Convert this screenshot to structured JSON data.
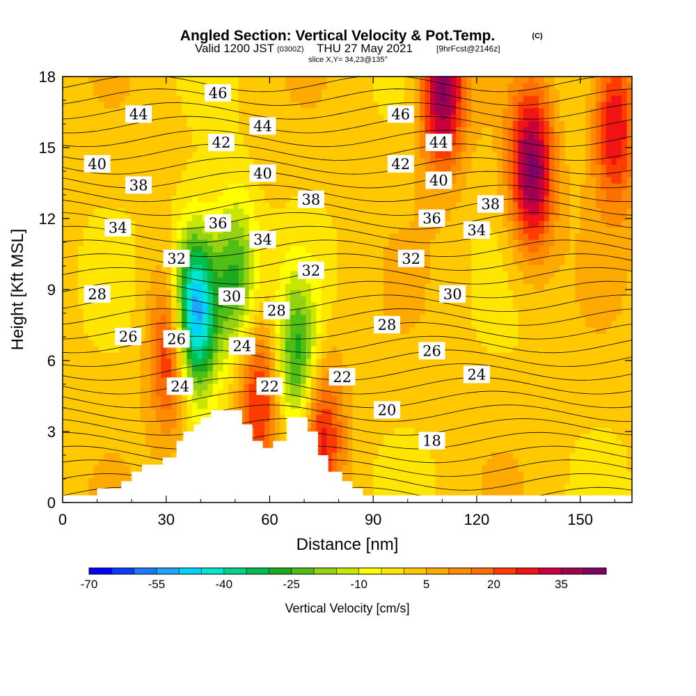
{
  "chart_data": {
    "type": "heatmap",
    "title": "Angled Section: Vertical Velocity & Pot.Temp.",
    "title_suffix": "(C)",
    "subtitle_valid": "Valid 1200 JST",
    "subtitle_utc": "(0300Z)",
    "subtitle_date": "THU 27 May 2021",
    "subtitle_fcst": "[9hrFcst@2146z]",
    "slice": "slice X,Y= 34,23@135°",
    "xlabel": "Distance [nm]",
    "ylabel": "Height [Kft MSL]",
    "xlim": [
      0,
      165
    ],
    "ylim": [
      0,
      18
    ],
    "xticks": [
      0,
      30,
      60,
      90,
      120,
      150
    ],
    "yticks": [
      0,
      3,
      6,
      9,
      12,
      15,
      18
    ],
    "colorbar": {
      "label": "Vertical Velocity [cm/s]",
      "levels": [
        -70,
        -65,
        -60,
        -55,
        -50,
        -45,
        -40,
        -35,
        -30,
        -25,
        -20,
        -15,
        -10,
        -5,
        0,
        5,
        10,
        15,
        20,
        25,
        30,
        35,
        40,
        45
      ],
      "tick_labels": [
        -70,
        -55,
        -40,
        -25,
        -10,
        5,
        20,
        35
      ],
      "colors": [
        "#0000ff",
        "#0a3cff",
        "#1e78ff",
        "#1ea5ff",
        "#00d2ff",
        "#00e6d2",
        "#00d28c",
        "#00be50",
        "#1eaa1e",
        "#50be14",
        "#96d214",
        "#c8e600",
        "#ffff00",
        "#ffe600",
        "#ffc800",
        "#ffaa00",
        "#ff8c00",
        "#ff6e00",
        "#ff3c00",
        "#f01414",
        "#c8003c",
        "#a00050",
        "#820064"
      ]
    },
    "velocity_features": [
      {
        "x": 38,
        "y": 8.0,
        "value": -65
      },
      {
        "x": 50,
        "y": 9.5,
        "value": -30
      },
      {
        "x": 68,
        "y": 6.0,
        "value": -30
      },
      {
        "x": 32,
        "y": 6.5,
        "value": 32
      },
      {
        "x": 57,
        "y": 4.5,
        "value": 25
      },
      {
        "x": 75,
        "y": 3.0,
        "value": 25
      },
      {
        "x": 136,
        "y": 14.0,
        "value": 40
      },
      {
        "x": 110,
        "y": 17.5,
        "value": 40
      },
      {
        "x": 160,
        "y": 16.0,
        "value": 30
      }
    ],
    "theta_contours": {
      "min": 17,
      "max": 47,
      "interval": 1,
      "unit": "C"
    },
    "contour_labels": [
      {
        "text": "46",
        "x": 45,
        "y": 17.3
      },
      {
        "text": "44",
        "x": 22,
        "y": 16.4
      },
      {
        "text": "44",
        "x": 58,
        "y": 15.9
      },
      {
        "text": "46",
        "x": 98,
        "y": 16.4
      },
      {
        "text": "44",
        "x": 109,
        "y": 15.2
      },
      {
        "text": "40",
        "x": 10,
        "y": 14.3
      },
      {
        "text": "42",
        "x": 46,
        "y": 15.2
      },
      {
        "text": "42",
        "x": 98,
        "y": 14.3
      },
      {
        "text": "40",
        "x": 58,
        "y": 13.9
      },
      {
        "text": "40",
        "x": 109,
        "y": 13.6
      },
      {
        "text": "38",
        "x": 22,
        "y": 13.4
      },
      {
        "text": "38",
        "x": 72,
        "y": 12.8
      },
      {
        "text": "38",
        "x": 124,
        "y": 12.6
      },
      {
        "text": "36",
        "x": 45,
        "y": 11.8
      },
      {
        "text": "36",
        "x": 107,
        "y": 12.0
      },
      {
        "text": "34",
        "x": 16,
        "y": 11.6
      },
      {
        "text": "34",
        "x": 58,
        "y": 11.1
      },
      {
        "text": "34",
        "x": 120,
        "y": 11.5
      },
      {
        "text": "32",
        "x": 33,
        "y": 10.3
      },
      {
        "text": "32",
        "x": 72,
        "y": 9.8
      },
      {
        "text": "32",
        "x": 101,
        "y": 10.3
      },
      {
        "text": "30",
        "x": 49,
        "y": 8.7
      },
      {
        "text": "30",
        "x": 113,
        "y": 8.8
      },
      {
        "text": "28",
        "x": 10,
        "y": 8.8
      },
      {
        "text": "28",
        "x": 62,
        "y": 8.1
      },
      {
        "text": "28",
        "x": 94,
        "y": 7.5
      },
      {
        "text": "26",
        "x": 19,
        "y": 7.0
      },
      {
        "text": "26",
        "x": 33,
        "y": 6.9
      },
      {
        "text": "26",
        "x": 107,
        "y": 6.4
      },
      {
        "text": "24",
        "x": 52,
        "y": 6.6
      },
      {
        "text": "24",
        "x": 34,
        "y": 4.9
      },
      {
        "text": "24",
        "x": 120,
        "y": 5.4
      },
      {
        "text": "22",
        "x": 60,
        "y": 4.9
      },
      {
        "text": "22",
        "x": 81,
        "y": 5.3
      },
      {
        "text": "20",
        "x": 94,
        "y": 3.9
      },
      {
        "text": "18",
        "x": 107,
        "y": 2.6
      }
    ],
    "terrain_profile_nm_kft": [
      [
        0,
        0.3
      ],
      [
        10,
        0.3
      ],
      [
        10,
        0.6
      ],
      [
        17,
        0.6
      ],
      [
        17,
        0.9
      ],
      [
        20,
        0.9
      ],
      [
        20,
        1.3
      ],
      [
        23,
        1.3
      ],
      [
        23,
        1.6
      ],
      [
        29,
        1.6
      ],
      [
        29,
        1.9
      ],
      [
        33,
        1.9
      ],
      [
        33,
        2.6
      ],
      [
        35,
        2.6
      ],
      [
        35,
        3.0
      ],
      [
        38,
        3.0
      ],
      [
        38,
        3.3
      ],
      [
        40,
        3.3
      ],
      [
        40,
        3.6
      ],
      [
        43,
        3.6
      ],
      [
        43,
        3.9
      ],
      [
        52,
        3.9
      ],
      [
        52,
        3.3
      ],
      [
        55,
        3.3
      ],
      [
        55,
        2.6
      ],
      [
        58,
        2.6
      ],
      [
        58,
        2.3
      ],
      [
        61,
        2.3
      ],
      [
        61,
        2.6
      ],
      [
        65,
        2.6
      ],
      [
        65,
        3.6
      ],
      [
        71,
        3.6
      ],
      [
        71,
        3.0
      ],
      [
        74,
        3.0
      ],
      [
        74,
        2.0
      ],
      [
        77,
        2.0
      ],
      [
        77,
        1.3
      ],
      [
        81,
        1.3
      ],
      [
        81,
        0.9
      ],
      [
        84,
        0.9
      ],
      [
        84,
        0.6
      ],
      [
        87,
        0.6
      ],
      [
        87,
        0.3
      ],
      [
        165,
        0.3
      ]
    ]
  }
}
